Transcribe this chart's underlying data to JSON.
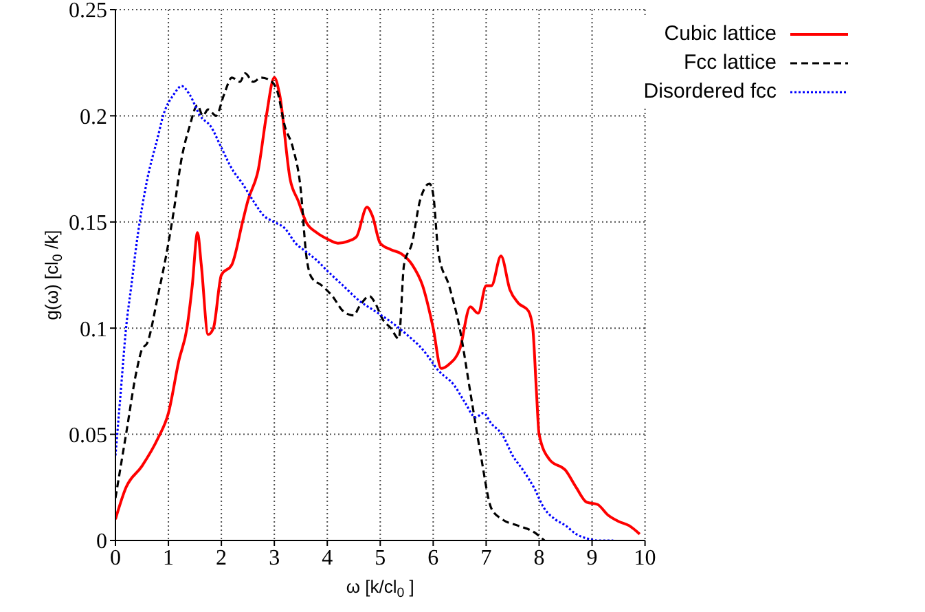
{
  "chart_data": {
    "type": "line",
    "xlabel": "ω [k/cl$_{0}$]",
    "ylabel": "g(ω) [cl$_{0}$/k]",
    "xlim": [
      0,
      10
    ],
    "xticks": [
      0,
      1,
      2,
      3,
      4,
      5,
      6,
      7,
      8,
      9,
      10
    ],
    "ylim": [
      0,
      0.25
    ],
    "yticks": [
      0,
      0.05,
      0.1,
      0.15,
      0.2,
      0.25
    ],
    "grid": true,
    "legend": "top right",
    "marker": "none",
    "series": [
      {
        "name": "Cubic lattice",
        "color": "#ff0000",
        "line_style": "solid",
        "x": [
          0,
          0.2,
          0.5,
          0.8,
          1.0,
          1.2,
          1.35,
          1.45,
          1.55,
          1.62,
          1.75,
          1.85,
          2.0,
          2.2,
          2.4,
          2.5,
          2.7,
          2.85,
          3.0,
          3.1,
          3.3,
          3.45,
          3.6,
          3.8,
          4.0,
          4.2,
          4.4,
          4.55,
          4.75,
          4.85,
          5.0,
          5.2,
          5.4,
          5.6,
          5.8,
          6.0,
          6.15,
          6.3,
          6.5,
          6.7,
          6.85,
          7.0,
          7.1,
          7.28,
          7.45,
          7.6,
          7.8,
          7.88,
          7.95,
          8.0,
          8.2,
          8.5,
          8.7,
          8.9,
          9.1,
          9.3,
          9.5,
          9.7,
          9.9
        ],
        "values": [
          0.01,
          0.025,
          0.035,
          0.048,
          0.06,
          0.085,
          0.1,
          0.12,
          0.145,
          0.13,
          0.097,
          0.1,
          0.125,
          0.13,
          0.15,
          0.16,
          0.175,
          0.2,
          0.218,
          0.21,
          0.17,
          0.16,
          0.15,
          0.145,
          0.142,
          0.14,
          0.141,
          0.143,
          0.157,
          0.153,
          0.14,
          0.137,
          0.135,
          0.13,
          0.12,
          0.1,
          0.081,
          0.083,
          0.09,
          0.11,
          0.107,
          0.12,
          0.12,
          0.134,
          0.118,
          0.112,
          0.108,
          0.1,
          0.07,
          0.05,
          0.038,
          0.033,
          0.025,
          0.018,
          0.017,
          0.012,
          0.009,
          0.007,
          0.003
        ]
      },
      {
        "name": "Fcc lattice",
        "color": "#000000",
        "line_style": "dashed",
        "x": [
          0,
          0.2,
          0.4,
          0.5,
          0.6,
          0.8,
          1.0,
          1.1,
          1.25,
          1.4,
          1.55,
          1.65,
          1.75,
          1.9,
          2.05,
          2.2,
          2.35,
          2.45,
          2.6,
          2.75,
          2.9,
          3.05,
          3.2,
          3.35,
          3.5,
          3.6,
          3.7,
          3.9,
          4.1,
          4.3,
          4.5,
          4.6,
          4.8,
          4.9,
          5.05,
          5.2,
          5.35,
          5.45,
          5.6,
          5.75,
          5.93,
          6.0,
          6.1,
          6.3,
          6.5,
          6.7,
          6.9,
          7.1,
          7.3,
          7.6,
          7.9,
          8.1
        ],
        "values": [
          0.02,
          0.05,
          0.08,
          0.09,
          0.093,
          0.115,
          0.14,
          0.155,
          0.18,
          0.195,
          0.205,
          0.2,
          0.203,
          0.2,
          0.21,
          0.218,
          0.216,
          0.22,
          0.216,
          0.218,
          0.217,
          0.212,
          0.195,
          0.185,
          0.165,
          0.135,
          0.124,
          0.12,
          0.115,
          0.108,
          0.106,
          0.11,
          0.115,
          0.112,
          0.104,
          0.1,
          0.095,
          0.13,
          0.14,
          0.16,
          0.168,
          0.163,
          0.135,
          0.12,
          0.1,
          0.07,
          0.04,
          0.015,
          0.01,
          0.007,
          0.004,
          0
        ]
      },
      {
        "name": "Disordered fcc",
        "color": "#0000ff",
        "line_style": "dotted",
        "x": [
          0,
          0.1,
          0.2,
          0.3,
          0.4,
          0.6,
          0.8,
          0.9,
          1.1,
          1.25,
          1.4,
          1.6,
          1.8,
          2.0,
          2.2,
          2.4,
          2.6,
          2.8,
          3.0,
          3.2,
          3.4,
          3.6,
          3.8,
          4.0,
          4.3,
          4.6,
          4.9,
          5.2,
          5.5,
          5.8,
          6.1,
          6.4,
          6.6,
          6.8,
          6.95,
          7.1,
          7.3,
          7.5,
          7.7,
          7.9,
          8.1,
          8.3,
          8.5,
          8.7,
          8.9,
          9.1,
          9.4
        ],
        "values": [
          0.04,
          0.07,
          0.1,
          0.12,
          0.14,
          0.17,
          0.19,
          0.2,
          0.21,
          0.214,
          0.21,
          0.2,
          0.195,
          0.185,
          0.175,
          0.168,
          0.16,
          0.153,
          0.15,
          0.147,
          0.14,
          0.136,
          0.132,
          0.127,
          0.12,
          0.113,
          0.108,
          0.103,
          0.097,
          0.09,
          0.08,
          0.073,
          0.065,
          0.058,
          0.06,
          0.055,
          0.05,
          0.04,
          0.033,
          0.025,
          0.015,
          0.01,
          0.007,
          0.003,
          0.001,
          0,
          0
        ]
      }
    ]
  }
}
